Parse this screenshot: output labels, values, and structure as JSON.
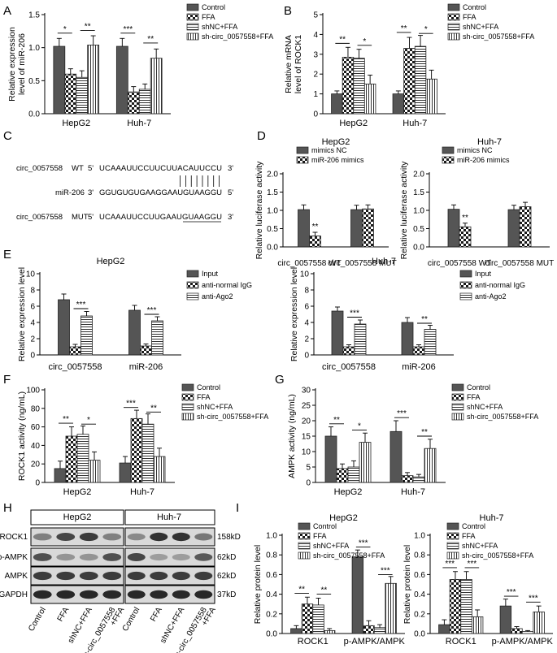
{
  "panel_letters": [
    "A",
    "B",
    "C",
    "D",
    "E",
    "F",
    "G",
    "H",
    "I"
  ],
  "patterns": {
    "control": {
      "name": "solid-dark",
      "color": "#555555"
    },
    "ffa": {
      "name": "checker",
      "color": "#1a1a1a"
    },
    "shnc": {
      "name": "horizontal-lines",
      "color": "#333333"
    },
    "sh": {
      "name": "vertical-lines",
      "color": "#333333"
    }
  },
  "panel_c": {
    "rows": [
      {
        "name": "circ_0057558",
        "type": "WT",
        "prefix": "5'",
        "seq": "UCAAAUUCCUUCUUACAUUCCU",
        "suffix": "3'"
      },
      {
        "name": "miR-206",
        "type": "",
        "prefix": "3'",
        "seq": "GGUGUGUGAAGGAAUGUAAGGU",
        "suffix": "5'"
      },
      {
        "name": "circ_0057558",
        "type": "MUT",
        "prefix": "5'",
        "seq": "UCAAAUUCCUUGAAUGUAAGGU",
        "suffix": "3'"
      }
    ]
  },
  "panel_h": {
    "groups": [
      "HepG2",
      "Huh-7"
    ],
    "rows": [
      "ROCK1",
      "p-AMPK",
      "AMPK",
      "GAPDH"
    ],
    "sizes": [
      "158kD",
      "62kD",
      "62kD",
      "37kD"
    ],
    "lanes": [
      "Control",
      "FFA",
      "shNC+FFA",
      "sh-circ_0057558\n+FFA",
      "Control",
      "FFA",
      "shNC+FFA",
      "sh-circ_0057558\n+FFA"
    ]
  },
  "chart_data": [
    {
      "panel": "A",
      "type": "bar",
      "ylabel": "Relative expression\nlevel of miR-206",
      "ylim": [
        0,
        1.5
      ],
      "yticks": [
        0,
        0.5,
        1.0,
        1.5
      ],
      "ytick_labels": [
        "0.0",
        "0.5",
        "1.0",
        "1.5"
      ],
      "categories": [
        "HepG2",
        "Huh-7"
      ],
      "series": [
        {
          "name": "Control",
          "pattern": "control",
          "values": [
            1.02,
            1.02
          ],
          "errors": [
            0.12,
            0.12
          ]
        },
        {
          "name": "FFA",
          "pattern": "ffa",
          "values": [
            0.6,
            0.33
          ],
          "errors": [
            0.08,
            0.08
          ]
        },
        {
          "name": "shNC+FFA",
          "pattern": "shnc",
          "values": [
            0.55,
            0.37
          ],
          "errors": [
            0.1,
            0.08
          ]
        },
        {
          "name": "sh-circ_0057558+FFA",
          "pattern": "sh",
          "values": [
            1.04,
            0.84
          ],
          "errors": [
            0.14,
            0.14
          ]
        }
      ],
      "annotations": [
        {
          "category": 0,
          "from": 0,
          "to": 1,
          "level": 1.22,
          "text": "*"
        },
        {
          "category": 0,
          "from": 2,
          "to": 3,
          "level": 1.26,
          "text": "**"
        },
        {
          "category": 1,
          "from": 0,
          "to": 1,
          "level": 1.22,
          "text": "***"
        },
        {
          "category": 1,
          "from": 2,
          "to": 3,
          "level": 1.07,
          "text": "**"
        }
      ],
      "legend": "top-right"
    },
    {
      "panel": "B",
      "type": "bar",
      "ylabel": "Relative mRNA\nlevel of ROCK1",
      "ylim": [
        0,
        5
      ],
      "yticks": [
        0,
        1,
        2,
        3,
        4,
        5
      ],
      "ytick_labels": [
        "0",
        "1",
        "2",
        "3",
        "4",
        "5"
      ],
      "categories": [
        "HepG2",
        "Huh-7"
      ],
      "series": [
        {
          "name": "Control",
          "pattern": "control",
          "values": [
            1.0,
            1.0
          ],
          "errors": [
            0.15,
            0.15
          ]
        },
        {
          "name": "FFA",
          "pattern": "ffa",
          "values": [
            2.85,
            3.3
          ],
          "errors": [
            0.5,
            0.55
          ]
        },
        {
          "name": "shNC+FFA",
          "pattern": "shnc",
          "values": [
            2.8,
            3.4
          ],
          "errors": [
            0.45,
            0.55
          ]
        },
        {
          "name": "sh-circ_0057558+FFA",
          "pattern": "sh",
          "values": [
            1.5,
            1.75
          ],
          "errors": [
            0.45,
            0.45
          ]
        }
      ],
      "annotations": [
        {
          "category": 0,
          "from": 0,
          "to": 1,
          "level": 3.55,
          "text": "**"
        },
        {
          "category": 0,
          "from": 2,
          "to": 3,
          "level": 3.45,
          "text": "*"
        },
        {
          "category": 1,
          "from": 0,
          "to": 1,
          "level": 4.1,
          "text": "**"
        },
        {
          "category": 1,
          "from": 2,
          "to": 3,
          "level": 4.05,
          "text": "*"
        }
      ],
      "legend": "top-right"
    },
    {
      "panel": "D1",
      "type": "bar",
      "title": "HepG2",
      "ylabel": "Relative luciferase activity",
      "ylim": [
        0,
        2.0
      ],
      "yticks": [
        0,
        0.5,
        1.0,
        1.5,
        2.0
      ],
      "ytick_labels": [
        "0.0",
        "0.5",
        "1.0",
        "1.5",
        "2.0"
      ],
      "categories": [
        "circ_0057558 WT",
        "circ_0057558 MUT"
      ],
      "series": [
        {
          "name": "mimics NC",
          "pattern": "control",
          "values": [
            1.02,
            1.02
          ],
          "errors": [
            0.13,
            0.12
          ]
        },
        {
          "name": "miR-206 mimics",
          "pattern": "ffa",
          "values": [
            0.3,
            1.04
          ],
          "errors": [
            0.1,
            0.11
          ]
        }
      ],
      "annotations": [
        {
          "category": 0,
          "series": 1,
          "text": "**"
        }
      ],
      "legend": "top-left"
    },
    {
      "panel": "D2",
      "type": "bar",
      "title": "Huh-7",
      "ylabel": "Relative luciferase activity",
      "ylim": [
        0,
        2.0
      ],
      "yticks": [
        0,
        0.5,
        1.0,
        1.5,
        2.0
      ],
      "ytick_labels": [
        "0.0",
        "0.5",
        "1.0",
        "1.5",
        "2.0"
      ],
      "categories": [
        "circ_0057558 WT",
        "circ_0057558 MUT"
      ],
      "series": [
        {
          "name": "mimics NC",
          "pattern": "control",
          "values": [
            1.03,
            1.02
          ],
          "errors": [
            0.12,
            0.12
          ]
        },
        {
          "name": "miR-206 mimics",
          "pattern": "ffa",
          "values": [
            0.55,
            1.1
          ],
          "errors": [
            0.1,
            0.12
          ]
        }
      ],
      "annotations": [
        {
          "category": 0,
          "series": 1,
          "text": "**"
        }
      ],
      "legend": "top-left"
    },
    {
      "panel": "E1",
      "type": "bar",
      "title": "HepG2",
      "ylabel": "Relative expression level",
      "ylim": [
        0,
        10
      ],
      "yticks": [
        0,
        2,
        4,
        6,
        8,
        10
      ],
      "ytick_labels": [
        "0",
        "2",
        "4",
        "6",
        "8",
        "10"
      ],
      "categories": [
        "circ_0057558",
        "miR-206"
      ],
      "series": [
        {
          "name": "Input",
          "pattern": "control",
          "values": [
            6.8,
            5.5
          ],
          "errors": [
            0.7,
            0.6
          ]
        },
        {
          "name": "anti-normal IgG",
          "pattern": "ffa",
          "values": [
            1.0,
            1.1
          ],
          "errors": [
            0.3,
            0.25
          ]
        },
        {
          "name": "anti-Ago2",
          "pattern": "shnc",
          "values": [
            4.8,
            4.2
          ],
          "errors": [
            0.55,
            0.5
          ]
        }
      ],
      "annotations": [
        {
          "category": 0,
          "from": 1,
          "to": 2,
          "level": 5.7,
          "text": "***"
        },
        {
          "category": 1,
          "from": 1,
          "to": 2,
          "level": 5.0,
          "text": "***"
        }
      ],
      "legend": "top-right"
    },
    {
      "panel": "E2",
      "type": "bar",
      "title": "Huh-7",
      "ylabel": "Relative expression level",
      "ylim": [
        0,
        10
      ],
      "yticks": [
        0,
        2,
        4,
        6,
        8,
        10
      ],
      "ytick_labels": [
        "0",
        "2",
        "4",
        "6",
        "8",
        "10"
      ],
      "categories": [
        "circ_0057558",
        "miR-206"
      ],
      "series": [
        {
          "name": "Input",
          "pattern": "control",
          "values": [
            5.4,
            4.0
          ],
          "errors": [
            0.5,
            0.6
          ]
        },
        {
          "name": "anti-normal IgG",
          "pattern": "ffa",
          "values": [
            1.0,
            1.0
          ],
          "errors": [
            0.25,
            0.25
          ]
        },
        {
          "name": "anti-Ago2",
          "pattern": "shnc",
          "values": [
            3.8,
            3.15
          ],
          "errors": [
            0.5,
            0.5
          ]
        }
      ],
      "annotations": [
        {
          "category": 0,
          "from": 1,
          "to": 2,
          "level": 4.65,
          "text": "***"
        },
        {
          "category": 1,
          "from": 1,
          "to": 2,
          "level": 3.9,
          "text": "**"
        }
      ],
      "legend": "top-right"
    },
    {
      "panel": "F",
      "type": "bar",
      "ylabel": "ROCK1 activity (ng/mL)",
      "ylim": [
        0,
        100
      ],
      "yticks": [
        0,
        20,
        40,
        60,
        80,
        100
      ],
      "ytick_labels": [
        "0",
        "20",
        "40",
        "60",
        "80",
        "100"
      ],
      "categories": [
        "HepG2",
        "Huh-7"
      ],
      "series": [
        {
          "name": "Control",
          "pattern": "control",
          "values": [
            15,
            21
          ],
          "errors": [
            8,
            7
          ]
        },
        {
          "name": "FFA",
          "pattern": "ffa",
          "values": [
            50,
            69
          ],
          "errors": [
            10,
            9
          ]
        },
        {
          "name": "shNC+FFA",
          "pattern": "shnc",
          "values": [
            52,
            63
          ],
          "errors": [
            9,
            11
          ]
        },
        {
          "name": "sh-circ_0057558+FFA",
          "pattern": "sh",
          "values": [
            24,
            28
          ],
          "errors": [
            9,
            9
          ]
        }
      ],
      "annotations": [
        {
          "category": 0,
          "from": 0,
          "to": 1,
          "level": 64,
          "text": "**"
        },
        {
          "category": 0,
          "from": 2,
          "to": 3,
          "level": 63,
          "text": "*"
        },
        {
          "category": 1,
          "from": 0,
          "to": 1,
          "level": 81,
          "text": "***"
        },
        {
          "category": 1,
          "from": 2,
          "to": 3,
          "level": 76,
          "text": "**"
        }
      ],
      "legend": "top-right"
    },
    {
      "panel": "G",
      "type": "bar",
      "ylabel": "AMPK activity (ng/mL)",
      "ylim": [
        0,
        30
      ],
      "yticks": [
        0,
        5,
        10,
        15,
        20,
        25,
        30
      ],
      "ytick_labels": [
        "0",
        "5",
        "10",
        "15",
        "20",
        "25",
        "30"
      ],
      "categories": [
        "HepG2",
        "Huh-7"
      ],
      "series": [
        {
          "name": "Control",
          "pattern": "control",
          "values": [
            15,
            16.5
          ],
          "errors": [
            3,
            3.5
          ]
        },
        {
          "name": "FFA",
          "pattern": "ffa",
          "values": [
            4.5,
            2.2
          ],
          "errors": [
            1.5,
            1
          ]
        },
        {
          "name": "shNC+FFA",
          "pattern": "shnc",
          "values": [
            5,
            1.8
          ],
          "errors": [
            2,
            0.8
          ]
        },
        {
          "name": "sh-circ_0057558+FFA",
          "pattern": "sh",
          "values": [
            13,
            11
          ],
          "errors": [
            3,
            3
          ]
        }
      ],
      "annotations": [
        {
          "category": 0,
          "from": 0,
          "to": 1,
          "level": 19,
          "text": "**"
        },
        {
          "category": 0,
          "from": 2,
          "to": 3,
          "level": 17,
          "text": "*"
        },
        {
          "category": 1,
          "from": 0,
          "to": 1,
          "level": 21,
          "text": "***"
        },
        {
          "category": 1,
          "from": 2,
          "to": 3,
          "level": 15,
          "text": "**"
        }
      ],
      "legend": "top-right"
    },
    {
      "panel": "I1",
      "type": "bar",
      "title": "HepG2",
      "ylabel": "Relative protein level",
      "ylim": [
        0,
        1.0
      ],
      "yticks": [
        0,
        0.2,
        0.4,
        0.6,
        0.8,
        1.0
      ],
      "ytick_labels": [
        "0.0",
        "0.2",
        "0.4",
        "0.6",
        "0.8",
        "1.0"
      ],
      "categories": [
        "ROCK1",
        "p-AMPK/AMPK"
      ],
      "series": [
        {
          "name": "Control",
          "pattern": "control",
          "values": [
            0.05,
            0.78
          ],
          "errors": [
            0.03,
            0.07
          ]
        },
        {
          "name": "FFA",
          "pattern": "ffa",
          "values": [
            0.3,
            0.08
          ],
          "errors": [
            0.07,
            0.05
          ]
        },
        {
          "name": "shNC+FFA",
          "pattern": "shnc",
          "values": [
            0.29,
            0.06
          ],
          "errors": [
            0.07,
            0.03
          ]
        },
        {
          "name": "sh-circ_0057558+FFA",
          "pattern": "sh",
          "values": [
            0.03,
            0.51
          ],
          "errors": [
            0.02,
            0.07
          ]
        }
      ],
      "annotations": [
        {
          "category": 0,
          "from": 0,
          "to": 1,
          "level": 0.41,
          "text": "**"
        },
        {
          "category": 0,
          "from": 2,
          "to": 3,
          "level": 0.4,
          "text": "**"
        },
        {
          "category": 1,
          "from": 0,
          "to": 1,
          "level": 0.88,
          "text": "***"
        },
        {
          "category": 1,
          "from": 2,
          "to": 3,
          "level": 0.6,
          "text": "***"
        }
      ],
      "legend": "top-left"
    },
    {
      "panel": "I2",
      "type": "bar",
      "title": "Huh-7",
      "ylabel": "Relative protein level",
      "ylim": [
        0,
        1.0
      ],
      "yticks": [
        0,
        0.2,
        0.4,
        0.6,
        0.8,
        1.0
      ],
      "ytick_labels": [
        "0.0",
        "0.2",
        "0.4",
        "0.6",
        "0.8",
        "1.0"
      ],
      "categories": [
        "ROCK1",
        "p-AMPK/AMPK"
      ],
      "series": [
        {
          "name": "Control",
          "pattern": "control",
          "values": [
            0.09,
            0.28
          ],
          "errors": [
            0.05,
            0.07
          ]
        },
        {
          "name": "FFA",
          "pattern": "ffa",
          "values": [
            0.55,
            0.05
          ],
          "errors": [
            0.08,
            0.02
          ]
        },
        {
          "name": "shNC+FFA",
          "pattern": "shnc",
          "values": [
            0.55,
            0.02
          ],
          "errors": [
            0.08,
            0.01
          ]
        },
        {
          "name": "sh-circ_0057558+FFA",
          "pattern": "sh",
          "values": [
            0.17,
            0.22
          ],
          "errors": [
            0.07,
            0.06
          ]
        }
      ],
      "annotations": [
        {
          "category": 0,
          "from": 0,
          "to": 1,
          "level": 0.67,
          "text": "***"
        },
        {
          "category": 0,
          "from": 2,
          "to": 3,
          "level": 0.67,
          "text": "***"
        },
        {
          "category": 1,
          "from": 0,
          "to": 1,
          "level": 0.38,
          "text": "***"
        },
        {
          "category": 1,
          "from": 2,
          "to": 3,
          "level": 0.32,
          "text": "***"
        }
      ],
      "legend": "top-left"
    }
  ]
}
